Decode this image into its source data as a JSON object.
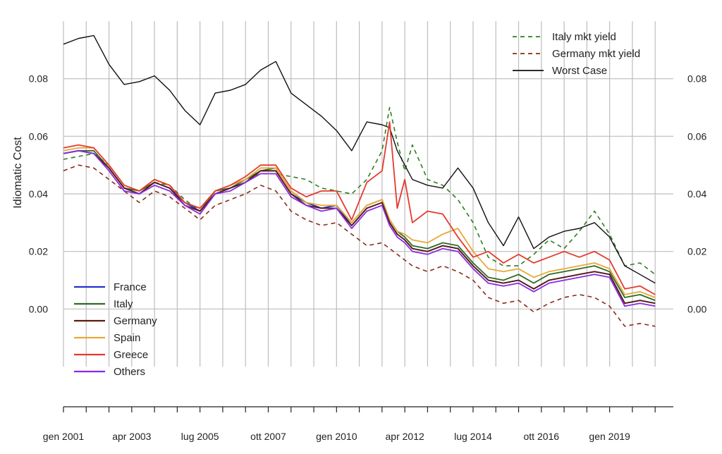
{
  "chart_data": {
    "type": "line",
    "title": "",
    "xlabel": "",
    "ylabel": "Idiomatic Cost",
    "ylim": [
      -0.02,
      0.1
    ],
    "y_ticks": [
      "0.00",
      "0.02",
      "0.04",
      "0.06",
      "0.08"
    ],
    "x_tick_labels": [
      "gen 2001",
      "apr 2003",
      "lug 2005",
      "ott 2007",
      "gen 2010",
      "apr 2012",
      "lug 2014",
      "ott 2016",
      "gen 2019"
    ],
    "grid": true,
    "legend_top_right": [
      "Italy mkt yield",
      "Germany mkt yield",
      "Worst Case"
    ],
    "legend_bottom_left": [
      "France",
      "Italy",
      "Germany",
      "Spain",
      "Greece",
      "Others"
    ],
    "x": [
      "2001-01",
      "2001-07",
      "2002-01",
      "2002-07",
      "2003-01",
      "2003-07",
      "2004-01",
      "2004-07",
      "2005-01",
      "2005-07",
      "2006-01",
      "2006-07",
      "2007-01",
      "2007-07",
      "2008-01",
      "2008-07",
      "2009-01",
      "2009-07",
      "2010-01",
      "2010-07",
      "2011-01",
      "2011-07",
      "2011-10",
      "2012-01",
      "2012-04",
      "2012-07",
      "2013-01",
      "2013-07",
      "2014-01",
      "2014-07",
      "2015-01",
      "2015-07",
      "2016-01",
      "2016-07",
      "2017-01",
      "2017-07",
      "2018-01",
      "2018-07",
      "2019-01",
      "2019-07",
      "2020-01",
      "2020-07"
    ],
    "series": [
      {
        "name": "Italy mkt yield",
        "color": "#2e7d1e",
        "dash": true,
        "values": [
          0.052,
          0.053,
          0.054,
          0.05,
          0.043,
          0.041,
          0.044,
          0.043,
          0.038,
          0.034,
          0.041,
          0.043,
          0.045,
          0.047,
          0.047,
          0.046,
          0.045,
          0.042,
          0.041,
          0.04,
          0.045,
          0.055,
          0.07,
          0.058,
          0.048,
          0.057,
          0.045,
          0.043,
          0.038,
          0.03,
          0.018,
          0.015,
          0.015,
          0.019,
          0.024,
          0.021,
          0.027,
          0.034,
          0.026,
          0.015,
          0.016,
          0.012
        ]
      },
      {
        "name": "Germany mkt yield",
        "color": "#8b2a1a",
        "dash": true,
        "values": [
          0.048,
          0.05,
          0.049,
          0.045,
          0.041,
          0.037,
          0.041,
          0.039,
          0.035,
          0.031,
          0.036,
          0.038,
          0.04,
          0.043,
          0.041,
          0.034,
          0.031,
          0.029,
          0.03,
          0.026,
          0.022,
          0.023,
          0.021,
          0.019,
          0.017,
          0.015,
          0.013,
          0.015,
          0.013,
          0.01,
          0.004,
          0.002,
          0.003,
          -0.001,
          0.002,
          0.004,
          0.005,
          0.004,
          0.001,
          -0.006,
          -0.005,
          -0.006
        ]
      },
      {
        "name": "Worst Case",
        "color": "#111111",
        "dash": false,
        "values": [
          0.092,
          0.094,
          0.095,
          0.085,
          0.078,
          0.079,
          0.081,
          0.076,
          0.069,
          0.064,
          0.075,
          0.076,
          0.078,
          0.083,
          0.086,
          0.075,
          0.071,
          0.067,
          0.062,
          0.055,
          0.065,
          0.064,
          0.063,
          0.055,
          0.05,
          0.045,
          0.043,
          0.042,
          0.049,
          0.042,
          0.03,
          0.022,
          0.032,
          0.021,
          0.025,
          0.027,
          0.028,
          0.03,
          0.025,
          0.015,
          0.012,
          0.009
        ]
      },
      {
        "name": "France",
        "color": "#2233cc",
        "dash": false,
        "values": [
          0.054,
          0.055,
          0.054,
          0.049,
          0.042,
          0.04,
          0.044,
          0.042,
          0.037,
          0.034,
          0.04,
          0.042,
          0.044,
          0.048,
          0.048,
          0.04,
          0.037,
          0.035,
          0.036,
          0.029,
          0.035,
          0.037,
          0.03,
          0.026,
          0.024,
          0.021,
          0.02,
          0.022,
          0.021,
          0.015,
          0.01,
          0.009,
          0.01,
          0.007,
          0.01,
          0.011,
          0.012,
          0.013,
          0.012,
          0.002,
          0.003,
          0.002
        ]
      },
      {
        "name": "Italy",
        "color": "#2e6b22",
        "dash": false,
        "values": [
          0.054,
          0.055,
          0.055,
          0.049,
          0.042,
          0.041,
          0.044,
          0.042,
          0.037,
          0.034,
          0.041,
          0.042,
          0.045,
          0.048,
          0.049,
          0.041,
          0.037,
          0.035,
          0.036,
          0.03,
          0.036,
          0.038,
          0.031,
          0.027,
          0.025,
          0.022,
          0.021,
          0.023,
          0.022,
          0.016,
          0.011,
          0.01,
          0.012,
          0.009,
          0.012,
          0.013,
          0.014,
          0.015,
          0.013,
          0.004,
          0.005,
          0.003
        ]
      },
      {
        "name": "Germany",
        "color": "#5a1a0e",
        "dash": false,
        "values": [
          0.054,
          0.055,
          0.054,
          0.049,
          0.042,
          0.04,
          0.044,
          0.042,
          0.036,
          0.034,
          0.04,
          0.042,
          0.044,
          0.048,
          0.048,
          0.04,
          0.036,
          0.035,
          0.035,
          0.029,
          0.035,
          0.037,
          0.03,
          0.026,
          0.024,
          0.021,
          0.02,
          0.022,
          0.021,
          0.015,
          0.01,
          0.009,
          0.01,
          0.007,
          0.01,
          0.011,
          0.012,
          0.013,
          0.012,
          0.002,
          0.003,
          0.002
        ]
      },
      {
        "name": "Spain",
        "color": "#e8a838",
        "dash": false,
        "values": [
          0.055,
          0.056,
          0.056,
          0.05,
          0.043,
          0.041,
          0.045,
          0.043,
          0.037,
          0.035,
          0.041,
          0.043,
          0.045,
          0.049,
          0.049,
          0.041,
          0.037,
          0.036,
          0.036,
          0.03,
          0.036,
          0.038,
          0.031,
          0.027,
          0.026,
          0.024,
          0.023,
          0.026,
          0.028,
          0.02,
          0.014,
          0.013,
          0.014,
          0.011,
          0.013,
          0.014,
          0.015,
          0.016,
          0.014,
          0.005,
          0.006,
          0.004
        ]
      },
      {
        "name": "Greece",
        "color": "#e53a2e",
        "dash": false,
        "values": [
          0.056,
          0.057,
          0.056,
          0.05,
          0.043,
          0.041,
          0.045,
          0.043,
          0.037,
          0.035,
          0.041,
          0.043,
          0.046,
          0.05,
          0.05,
          0.042,
          0.039,
          0.041,
          0.041,
          0.031,
          0.044,
          0.048,
          0.065,
          0.035,
          0.045,
          0.03,
          0.034,
          0.033,
          0.025,
          0.018,
          0.02,
          0.016,
          0.019,
          0.016,
          0.018,
          0.02,
          0.018,
          0.02,
          0.017,
          0.007,
          0.008,
          0.005
        ]
      },
      {
        "name": "Others",
        "color": "#8a2be2",
        "dash": false,
        "values": [
          0.054,
          0.055,
          0.054,
          0.048,
          0.041,
          0.04,
          0.043,
          0.041,
          0.036,
          0.033,
          0.04,
          0.041,
          0.044,
          0.047,
          0.047,
          0.039,
          0.036,
          0.034,
          0.035,
          0.028,
          0.034,
          0.036,
          0.029,
          0.025,
          0.023,
          0.02,
          0.019,
          0.021,
          0.02,
          0.014,
          0.009,
          0.008,
          0.009,
          0.006,
          0.009,
          0.01,
          0.011,
          0.012,
          0.011,
          0.001,
          0.002,
          0.001
        ]
      }
    ]
  }
}
